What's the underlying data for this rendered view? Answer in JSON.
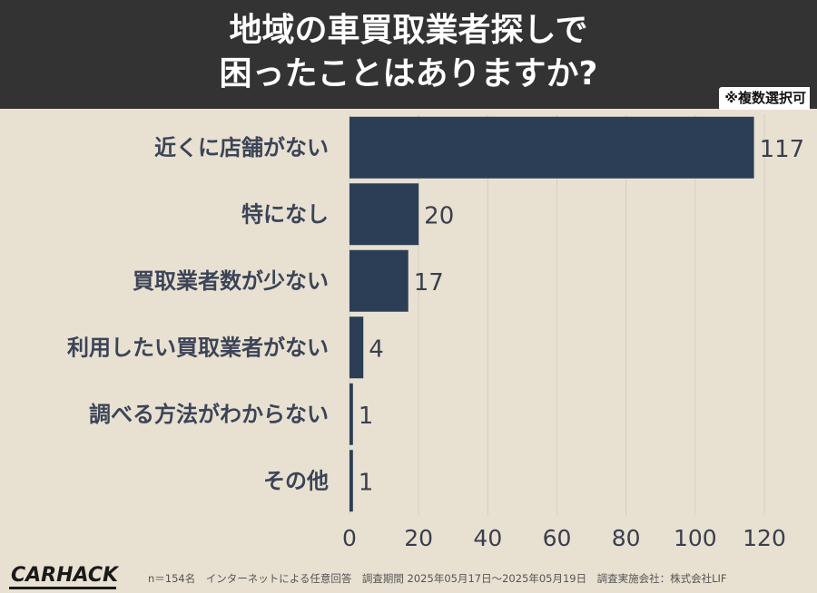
{
  "header": {
    "title": "地域の車買取業者探しで\n困ったことはありますか?",
    "note": "※複数選択可",
    "background": "#333333"
  },
  "chart_data": {
    "type": "bar",
    "orientation": "horizontal",
    "categories": [
      "近くに店舗がない",
      "特になし",
      "買取業者数が少ない",
      "利用したい買取業者がない",
      "調べる方法がわからない",
      "その他"
    ],
    "values": [
      117,
      20,
      17,
      4,
      1,
      1
    ],
    "xlim": [
      0,
      120
    ],
    "xticks": [
      0,
      20,
      40,
      60,
      80,
      100,
      120
    ],
    "grid": true,
    "bar_color": "#2b3e55",
    "label_color": "#3c4457"
  },
  "footer": {
    "logo": "CARHACK",
    "note": "n＝154名　インターネットによる任意回答　調査期間 2025年05月17日～2025年05月19日　調査実施会社：株式会社LIF"
  }
}
